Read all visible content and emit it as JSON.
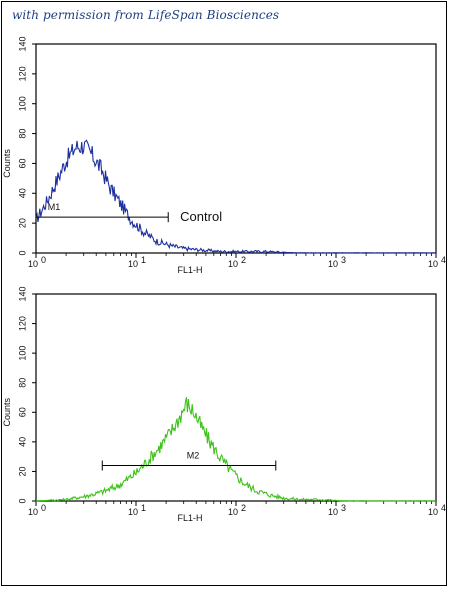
{
  "watermark": "with permission from LifeSpan Biosciences",
  "chart_data": [
    {
      "type": "line",
      "xscale": "log",
      "xlim": [
        1,
        10000
      ],
      "ylim": [
        0,
        140
      ],
      "xlabel": "FL1-H",
      "ylabel": "Counts",
      "xticks": [
        "10",
        "10",
        "10",
        "10",
        "10"
      ],
      "xtick_exponents": [
        "0",
        "1",
        "2",
        "3",
        "4"
      ],
      "yticks": [
        "0",
        "20",
        "40",
        "60",
        "80",
        "100",
        "120",
        "140"
      ],
      "series": [
        {
          "color": "#1d2f9e",
          "x": [
            1.0,
            1.3,
            1.6,
            2.0,
            2.5,
            3.0,
            3.6,
            4.5,
            5.5,
            7.0,
            9.0,
            12,
            16,
            22,
            30,
            45,
            70,
            110,
            200,
            400,
            1000,
            10000
          ],
          "y": [
            22,
            35,
            48,
            62,
            71,
            72,
            66,
            56,
            44,
            33,
            22,
            14,
            8,
            5,
            3,
            2,
            1,
            1,
            1,
            0,
            0,
            0
          ]
        }
      ],
      "gate": {
        "label": "M1",
        "x_start": 1.0,
        "x_end": 21,
        "y": 24
      },
      "annotation": {
        "text": "Control",
        "x": 23,
        "y": 24
      }
    },
    {
      "type": "line",
      "xscale": "log",
      "xlim": [
        1,
        10000
      ],
      "ylim": [
        0,
        140
      ],
      "xlabel": "FL1-H",
      "ylabel": "Counts",
      "xticks": [
        "10",
        "10",
        "10",
        "10",
        "10"
      ],
      "xtick_exponents": [
        "0",
        "1",
        "2",
        "3",
        "4"
      ],
      "yticks": [
        "0",
        "20",
        "40",
        "60",
        "80",
        "100",
        "120",
        "140"
      ],
      "series": [
        {
          "color": "#3fc21b",
          "x": [
            1.0,
            2.0,
            3.0,
            4.0,
            5.0,
            6.5,
            8.0,
            10,
            13,
            17,
            22,
            27,
            32,
            38,
            45,
            55,
            70,
            90,
            120,
            160,
            220,
            300,
            450,
            700,
            1200,
            10000
          ],
          "y": [
            0,
            1,
            3,
            5,
            7,
            10,
            14,
            19,
            27,
            36,
            46,
            56,
            66,
            60,
            50,
            40,
            29,
            20,
            12,
            7,
            4,
            2,
            1,
            1,
            0,
            0
          ]
        }
      ],
      "gate": {
        "label": "M2",
        "x_start": 4.6,
        "x_end": 250,
        "y": 24
      }
    }
  ]
}
